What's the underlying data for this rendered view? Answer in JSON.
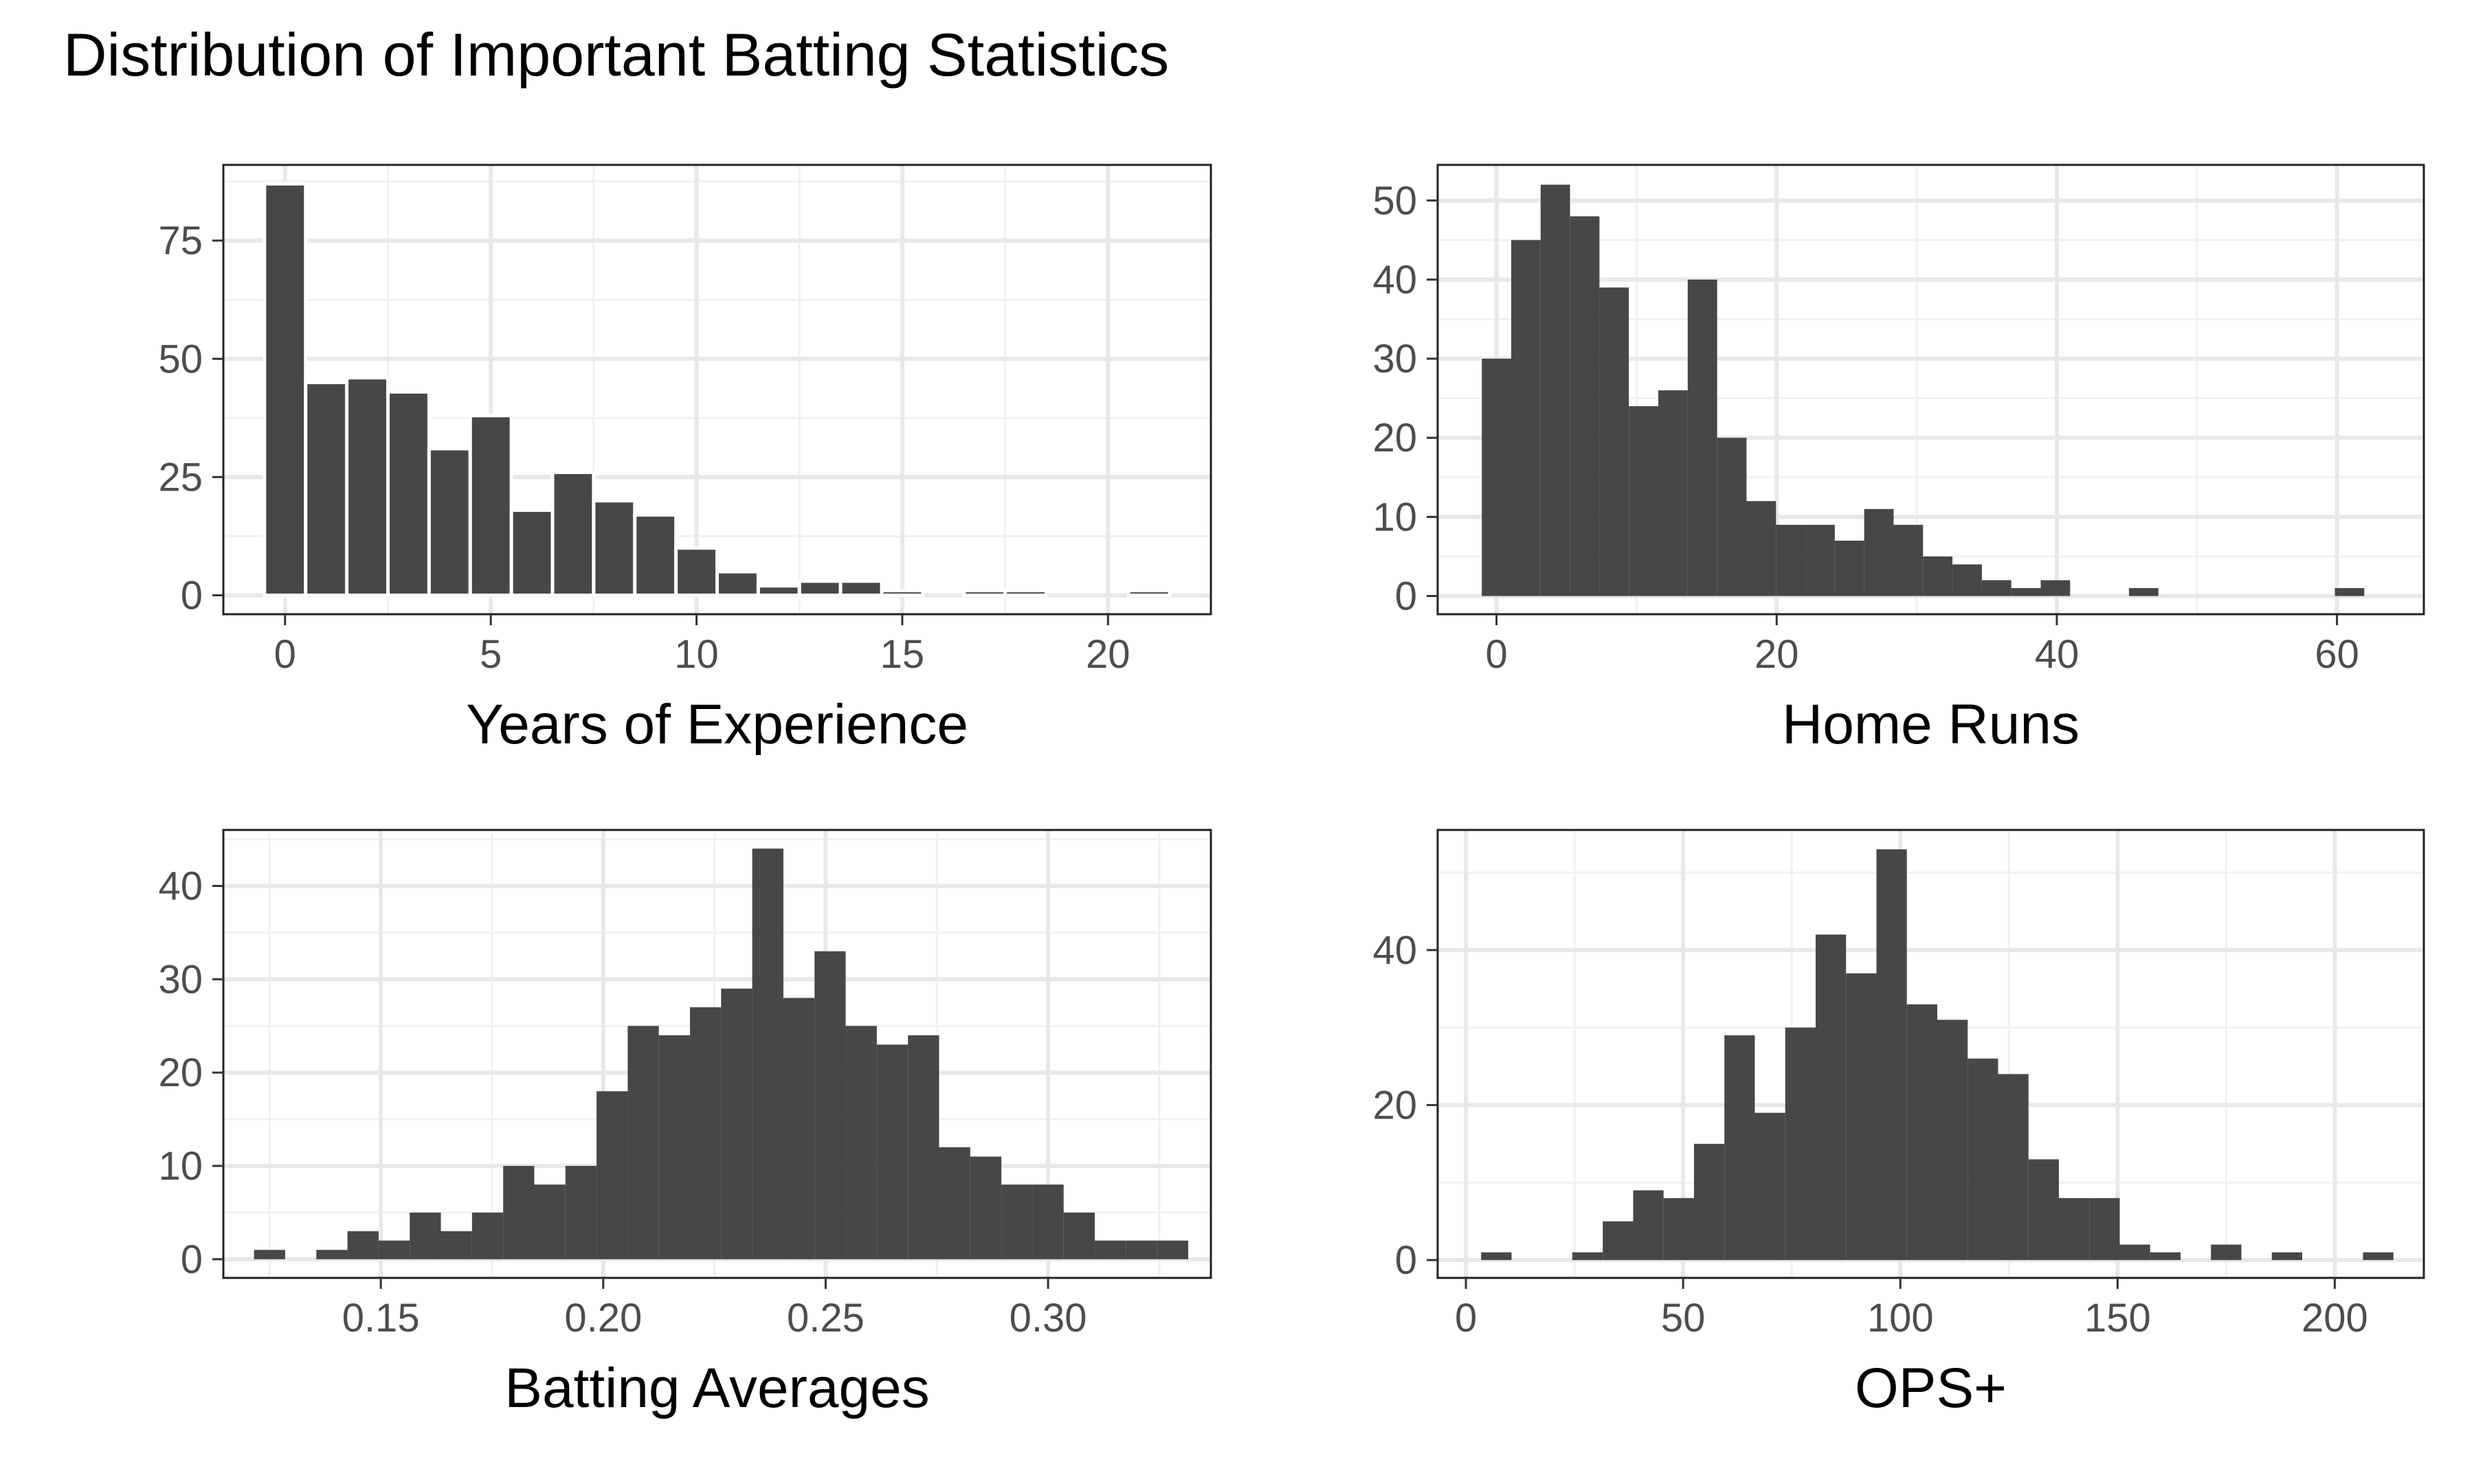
{
  "title": "Distribution of Important Batting Statistics",
  "colors": {
    "bar": "#474747",
    "bar_edge": "#ffffff",
    "grid_major": "#e8e8e8",
    "grid_minor": "#f1f1f1",
    "frame": "#222222",
    "tick_text": "#4d4d4d",
    "axis_title": "#000000"
  },
  "chart_data": [
    {
      "id": "years",
      "type": "bar",
      "xlabel": "Years of Experience",
      "ylabel": "",
      "x_ticks": [
        0,
        5,
        10,
        15,
        20
      ],
      "x_tick_labels": [
        "0",
        "5",
        "10",
        "15",
        "20"
      ],
      "y_ticks": [
        0,
        25,
        50,
        75
      ],
      "y_tick_labels": [
        "0",
        "25",
        "50",
        "75"
      ],
      "xlim": [
        -1.5,
        22.5
      ],
      "ylim": [
        -4,
        91
      ],
      "bin_width": 1,
      "bin_gap": true,
      "x": [
        0,
        1,
        2,
        3,
        4,
        5,
        6,
        7,
        8,
        9,
        10,
        11,
        12,
        13,
        14,
        15,
        16,
        17,
        18,
        19,
        20,
        21
      ],
      "values": [
        87,
        45,
        46,
        43,
        31,
        38,
        18,
        26,
        20,
        17,
        10,
        5,
        2,
        3,
        3,
        1,
        0,
        1,
        1,
        0,
        0,
        1
      ],
      "grid": true
    },
    {
      "id": "hr",
      "type": "bar",
      "xlabel": "Home Runs",
      "ylabel": "",
      "x_ticks": [
        0,
        20,
        40,
        60
      ],
      "x_tick_labels": [
        "0",
        "20",
        "40",
        "60"
      ],
      "y_ticks": [
        0,
        10,
        20,
        30,
        40,
        50
      ],
      "y_tick_labels": [
        "0",
        "10",
        "20",
        "30",
        "40",
        "50"
      ],
      "xlim": [
        -4.2,
        66.2
      ],
      "ylim": [
        -2.3,
        54.5
      ],
      "bin_width": 2.1,
      "bin_gap": false,
      "x": [
        0,
        2.1,
        4.2,
        6.3,
        8.4,
        10.5,
        12.6,
        14.7,
        16.8,
        18.9,
        21.0,
        23.1,
        25.2,
        27.3,
        29.4,
        31.5,
        33.6,
        35.7,
        37.8,
        39.9,
        42.0,
        44.1,
        46.2,
        48.3,
        50.4,
        52.5,
        54.6,
        56.7,
        58.8,
        60.9
      ],
      "values": [
        30,
        45,
        52,
        48,
        39,
        24,
        26,
        40,
        20,
        12,
        9,
        9,
        7,
        11,
        9,
        5,
        4,
        2,
        1,
        2,
        0,
        0,
        1,
        0,
        0,
        0,
        0,
        0,
        0,
        1
      ],
      "grid": true
    },
    {
      "id": "avg",
      "type": "bar",
      "xlabel": "Batting Averages",
      "ylabel": "",
      "x_ticks": [
        0.15,
        0.2,
        0.25,
        0.3
      ],
      "x_tick_labels": [
        "0.15",
        "0.20",
        "0.25",
        "0.30"
      ],
      "y_ticks": [
        0,
        10,
        20,
        30,
        40
      ],
      "y_tick_labels": [
        "0",
        "10",
        "20",
        "30",
        "40"
      ],
      "xlim": [
        0.1146,
        0.3366
      ],
      "ylim": [
        -2,
        46
      ],
      "bin_width": 0.007,
      "bin_gap": false,
      "x": [
        0.125,
        0.132,
        0.139,
        0.146,
        0.153,
        0.16,
        0.167,
        0.174,
        0.181,
        0.188,
        0.195,
        0.202,
        0.209,
        0.216,
        0.223,
        0.23,
        0.237,
        0.244,
        0.251,
        0.258,
        0.265,
        0.272,
        0.279,
        0.286,
        0.293,
        0.3,
        0.307,
        0.314,
        0.321,
        0.328
      ],
      "values": [
        1,
        0,
        1,
        3,
        2,
        5,
        3,
        5,
        10,
        8,
        10,
        18,
        25,
        24,
        27,
        29,
        44,
        28,
        33,
        25,
        23,
        24,
        12,
        11,
        8,
        8,
        5,
        2,
        2,
        2
      ],
      "grid": true
    },
    {
      "id": "ops",
      "type": "bar",
      "xlabel": "OPS+",
      "ylabel": "",
      "x_ticks": [
        0,
        50,
        100,
        150,
        200
      ],
      "x_tick_labels": [
        "0",
        "50",
        "100",
        "150",
        "200"
      ],
      "y_ticks": [
        0,
        20,
        40
      ],
      "y_tick_labels": [
        "0",
        "20",
        "40"
      ],
      "xlim": [
        -6.5,
        220.5
      ],
      "ylim": [
        -2.3,
        55.5
      ],
      "bin_width": 7,
      "bin_gap": false,
      "x": [
        7,
        14,
        21,
        28,
        35,
        42,
        49,
        56,
        63,
        70,
        77,
        84,
        91,
        98,
        105,
        112,
        119,
        126,
        133,
        140,
        147,
        154,
        161,
        168,
        175,
        182,
        189,
        196,
        203,
        210
      ],
      "values": [
        1,
        0,
        0,
        1,
        5,
        9,
        8,
        15,
        29,
        19,
        30,
        42,
        37,
        53,
        33,
        31,
        26,
        24,
        13,
        8,
        8,
        2,
        1,
        0,
        2,
        0,
        1,
        0,
        0,
        1
      ],
      "grid": true
    }
  ]
}
